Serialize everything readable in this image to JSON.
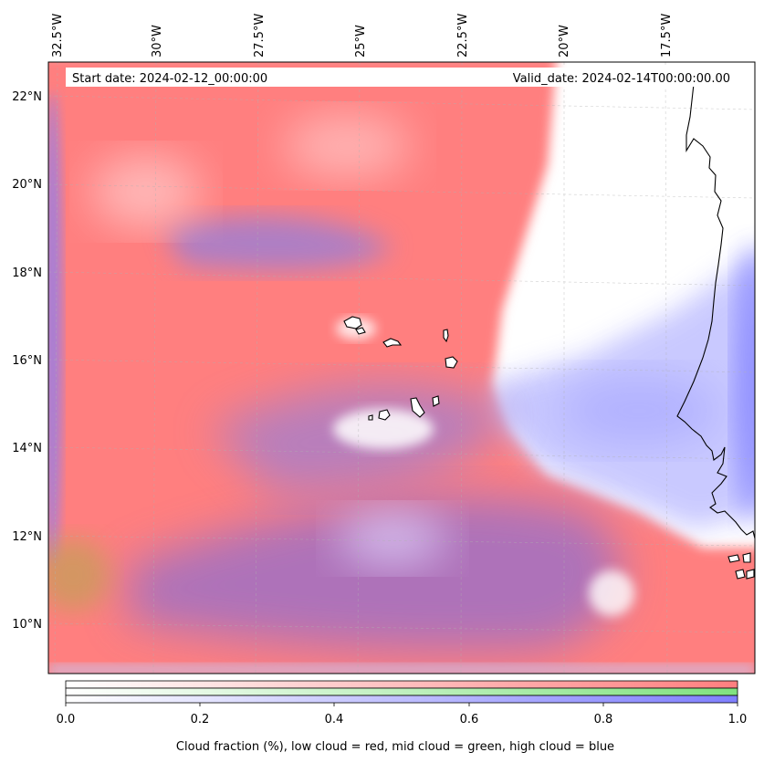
{
  "map": {
    "longitude_labels": [
      "32.5°W",
      "30°W",
      "27.5°W",
      "25°W",
      "22.5°W",
      "20°W",
      "17.5°W"
    ],
    "latitude_labels": [
      "22°N",
      "20°N",
      "18°N",
      "16°N",
      "14°N",
      "12°N",
      "10°N"
    ],
    "start_date": "Start date: 2024-02-12_00:00:00",
    "valid_date": "Valid_date: 2024-02-14T00:00:00.00",
    "colors": {
      "low_cloud": "#ff7f7f",
      "mid_cloud": "#80e27f",
      "high_cloud": "#7f7fff",
      "coastline": "#000000"
    }
  },
  "colorbar": {
    "ticks": [
      "0.0",
      "0.2",
      "0.4",
      "0.6",
      "0.8",
      "1.0"
    ],
    "label": "Cloud fraction (%), low cloud = red, mid cloud = green, high cloud = blue"
  }
}
